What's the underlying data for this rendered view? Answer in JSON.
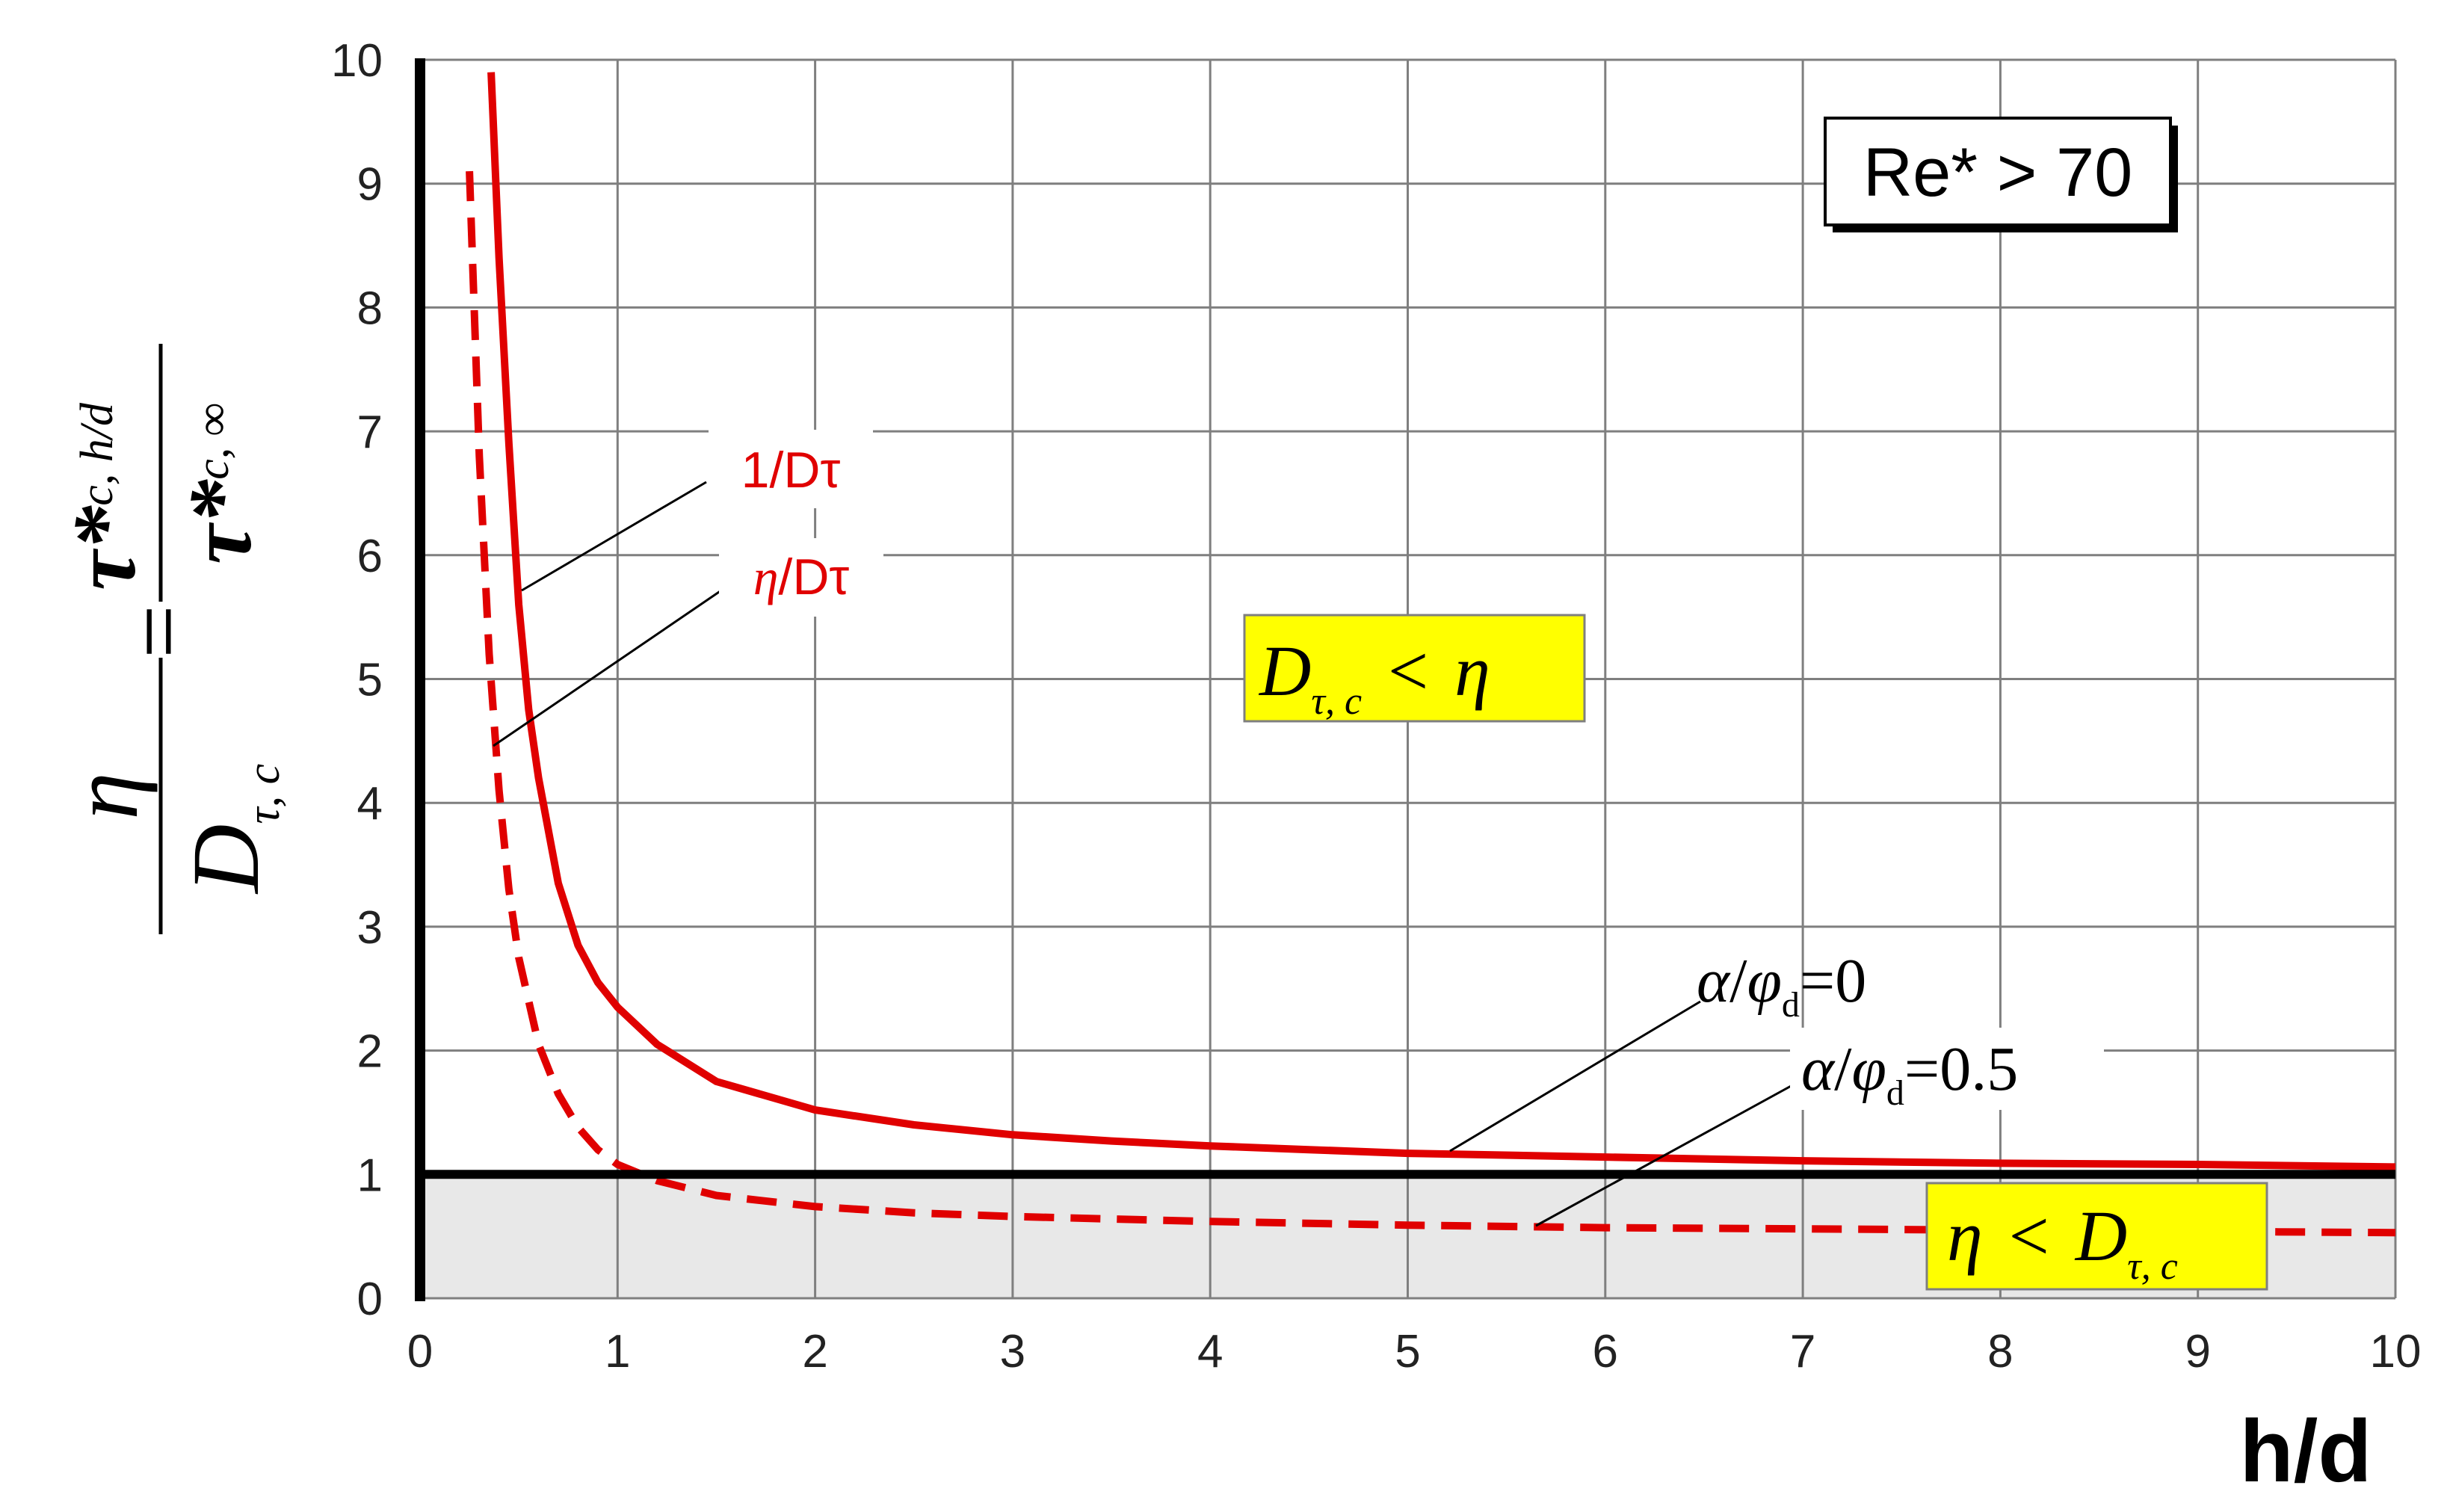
{
  "chart_data": {
    "type": "line",
    "xlabel": "h/d",
    "ylabel": {
      "eta": "η",
      "dtc": "D",
      "dtc_sub": "τ, c",
      "eq": "=",
      "tau_num": "τ*",
      "tau_num_sub": "c, h/d",
      "tau_den": "τ*",
      "tau_den_sub": "c, ∞"
    },
    "xlim": [
      0,
      10
    ],
    "ylim": [
      0,
      10
    ],
    "x_ticks": [
      "0",
      "1",
      "2",
      "3",
      "4",
      "5",
      "6",
      "7",
      "8",
      "9",
      "10"
    ],
    "y_ticks": [
      "0",
      "1",
      "2",
      "3",
      "4",
      "5",
      "6",
      "7",
      "8",
      "9",
      "10"
    ],
    "grid": true,
    "reference_line": {
      "y": 1
    },
    "shaded_region": {
      "y_from": 0,
      "y_to": 1,
      "color": "#e8e8e8"
    },
    "series": [
      {
        "name": "1/Dτ",
        "style": "solid",
        "color": "#e00000",
        "x": [
          0.36,
          0.4,
          0.45,
          0.5,
          0.55,
          0.6,
          0.7,
          0.8,
          0.9,
          1.0,
          1.2,
          1.5,
          2.0,
          2.5,
          3.0,
          3.5,
          4.0,
          4.5,
          5.0,
          6.0,
          7.0,
          8.0,
          9.0,
          10.0
        ],
        "y": [
          9.9,
          8.4,
          6.9,
          5.6,
          4.75,
          4.2,
          3.35,
          2.85,
          2.55,
          2.35,
          2.05,
          1.75,
          1.52,
          1.4,
          1.32,
          1.27,
          1.23,
          1.2,
          1.17,
          1.14,
          1.11,
          1.09,
          1.08,
          1.06
        ]
      },
      {
        "name": "η/Dτ",
        "style": "dashed",
        "color": "#e00000",
        "x": [
          0.25,
          0.3,
          0.35,
          0.4,
          0.45,
          0.5,
          0.6,
          0.7,
          0.8,
          0.9,
          1.0,
          1.2,
          1.5,
          2.0,
          2.5,
          3.0,
          4.0,
          5.0,
          6.0,
          7.0,
          8.0,
          9.0,
          10.0
        ],
        "y": [
          9.1,
          6.8,
          5.2,
          4.1,
          3.3,
          2.75,
          2.05,
          1.65,
          1.38,
          1.2,
          1.08,
          0.95,
          0.83,
          0.74,
          0.69,
          0.66,
          0.62,
          0.59,
          0.57,
          0.56,
          0.55,
          0.54,
          0.53
        ]
      }
    ],
    "annotations": {
      "re_box": "Re* > 70",
      "label_1": "1/Dτ",
      "label_2": "η/Dτ",
      "alpha_0": {
        "a": "α",
        "slash": "/",
        "phi": "φ",
        "phi_sub": "d",
        "eq": "=0"
      },
      "alpha_05": {
        "a": "α",
        "slash": "/",
        "phi": "φ",
        "phi_sub": "d",
        "eq": "=0.5"
      },
      "region_upper": {
        "d": "D",
        "sub": "τ, c",
        "op": "<",
        "eta": "η"
      },
      "region_lower": {
        "eta": "η",
        "op": "<",
        "d": "D",
        "sub": "τ, c"
      }
    },
    "colors": {
      "curve": "#e00000",
      "highlight": "#ffff00",
      "grid": "#7f7f7f",
      "axis": "#000000"
    }
  }
}
